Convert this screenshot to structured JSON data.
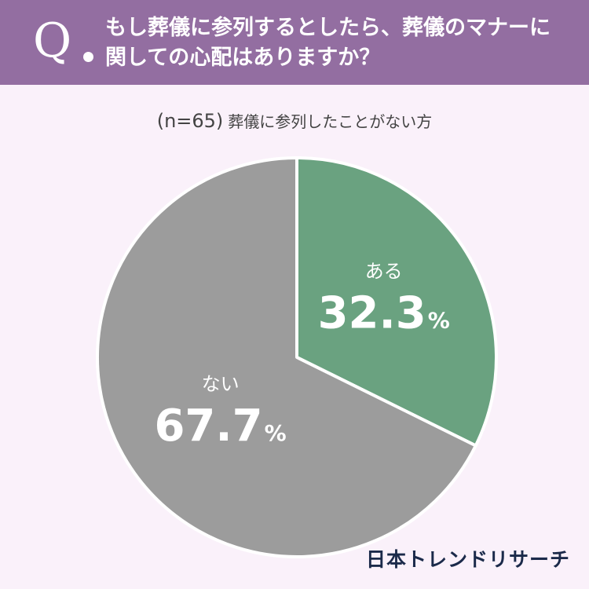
{
  "header": {
    "q_letter": "Q",
    "question_line1": "もし葬儀に参列するとしたら、葬儀のマナーに",
    "question_line2": "関しての心配はありますか？"
  },
  "subtitle": {
    "n_label": "(n=65)",
    "group": "葬儀に参列したことがない方"
  },
  "chart_data": {
    "type": "pie",
    "slices": [
      {
        "label": "ある",
        "value": 32.3,
        "color": "#6aa280"
      },
      {
        "label": "ない",
        "value": 67.7,
        "color": "#9c9c9c"
      }
    ],
    "unit": "%",
    "start": "12 o'clock",
    "direction": "clockwise"
  },
  "footer": {
    "logo": "日本トレンドリサーチ"
  }
}
